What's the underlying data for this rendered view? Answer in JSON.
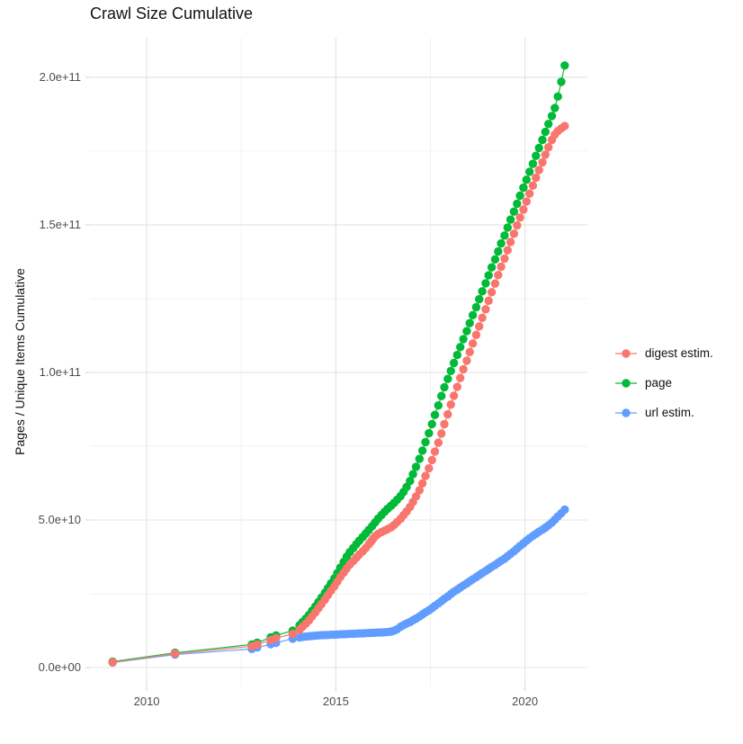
{
  "chart_data": {
    "type": "line-scatter",
    "title": "Crawl Size Cumulative",
    "xlabel": "",
    "ylabel": "Pages / Unique Items Cumulative",
    "value_unit": "1e9 (values below are billions of pages / items)",
    "grid": true,
    "legend_position": "right",
    "axes": {
      "x": {
        "lim": [
          2008.5,
          2021.65
        ],
        "major": [
          {
            "label": "2010",
            "year": 2010
          },
          {
            "label": "2015",
            "year": 2015
          },
          {
            "label": "2020",
            "year": 2020
          }
        ],
        "minor_years": [
          2012.5,
          2017.5
        ]
      },
      "y": {
        "lim_e9": [
          -6.4,
          213.4
        ],
        "major": [
          {
            "label": "0.0e+00",
            "value_e9": 0
          },
          {
            "label": "5.0e+10",
            "value_e9": 50
          },
          {
            "label": "1.0e+11",
            "value_e9": 100
          },
          {
            "label": "1.5e+11",
            "value_e9": 150
          },
          {
            "label": "2.0e+11",
            "value_e9": 200
          }
        ],
        "minor_e9": [
          25,
          75,
          125,
          175
        ]
      }
    },
    "style": {
      "grid_major_color": "#e4e4e4",
      "grid_minor_color": "#ededed",
      "tick_color": "#d6d6d6",
      "point_radius": 4.7,
      "line_width": 1.3
    },
    "series": [
      {
        "name": "digest estim.",
        "color": "#F8766D",
        "points": [
          [
            2009.1,
            1.8
          ],
          [
            2010.75,
            4.7
          ],
          [
            2012.78,
            7.2
          ],
          [
            2012.92,
            7.8
          ],
          [
            2013.28,
            9.3
          ],
          [
            2013.42,
            10
          ],
          [
            2013.86,
            11.4
          ],
          [
            2014.04,
            12.8
          ],
          [
            2014.12,
            13.8
          ],
          [
            2014.21,
            14.9
          ],
          [
            2014.29,
            16
          ],
          [
            2014.37,
            17.3
          ],
          [
            2014.46,
            18.7
          ],
          [
            2014.54,
            20.1
          ],
          [
            2014.62,
            21.5
          ],
          [
            2014.71,
            23
          ],
          [
            2014.79,
            24.5
          ],
          [
            2014.87,
            26
          ],
          [
            2014.96,
            27.5
          ],
          [
            2015.04,
            29.1
          ],
          [
            2015.12,
            30.7
          ],
          [
            2015.21,
            32.2
          ],
          [
            2015.29,
            33.6
          ],
          [
            2015.37,
            34.9
          ],
          [
            2015.46,
            36.1
          ],
          [
            2015.54,
            37.2
          ],
          [
            2015.62,
            38.3
          ],
          [
            2015.71,
            39.4
          ],
          [
            2015.79,
            40.5
          ],
          [
            2015.87,
            41.7
          ],
          [
            2015.92,
            42.5
          ],
          [
            2015.96,
            43.2
          ],
          [
            2016.0,
            43.9
          ],
          [
            2016.04,
            44.5
          ],
          [
            2016.12,
            45.3
          ],
          [
            2016.21,
            45.9
          ],
          [
            2016.29,
            46.4
          ],
          [
            2016.37,
            46.9
          ],
          [
            2016.46,
            47.5
          ],
          [
            2016.54,
            48.3
          ],
          [
            2016.62,
            49.3
          ],
          [
            2016.71,
            50.4
          ],
          [
            2016.79,
            51.6
          ],
          [
            2016.87,
            52.9
          ],
          [
            2016.96,
            54.4
          ],
          [
            2017.04,
            56.1
          ],
          [
            2017.12,
            58
          ],
          [
            2017.21,
            60.1
          ],
          [
            2017.29,
            62.4
          ],
          [
            2017.37,
            64.9
          ],
          [
            2017.46,
            67.5
          ],
          [
            2017.54,
            70.3
          ],
          [
            2017.62,
            73.2
          ],
          [
            2017.71,
            76.2
          ],
          [
            2017.79,
            79.3
          ],
          [
            2017.87,
            82.5
          ],
          [
            2017.96,
            85.8
          ],
          [
            2018.04,
            89.1
          ],
          [
            2018.12,
            92.1
          ],
          [
            2018.21,
            95.1
          ],
          [
            2018.29,
            98.1
          ],
          [
            2018.37,
            101.1
          ],
          [
            2018.46,
            104
          ],
          [
            2018.54,
            106.9
          ],
          [
            2018.62,
            109.8
          ],
          [
            2018.71,
            112.7
          ],
          [
            2018.79,
            115.6
          ],
          [
            2018.87,
            118.5
          ],
          [
            2018.96,
            121.4
          ],
          [
            2019.04,
            124.3
          ],
          [
            2019.12,
            127.2
          ],
          [
            2019.21,
            130.1
          ],
          [
            2019.29,
            133
          ],
          [
            2019.37,
            135.8
          ],
          [
            2019.46,
            138.6
          ],
          [
            2019.54,
            141.4
          ],
          [
            2019.62,
            144.2
          ],
          [
            2019.71,
            147
          ],
          [
            2019.79,
            149.8
          ],
          [
            2019.87,
            152.5
          ],
          [
            2019.96,
            155.2
          ],
          [
            2020.04,
            157.9
          ],
          [
            2020.12,
            160.6
          ],
          [
            2020.21,
            163.3
          ],
          [
            2020.29,
            166
          ],
          [
            2020.37,
            168.6
          ],
          [
            2020.46,
            171.2
          ],
          [
            2020.54,
            173.8
          ],
          [
            2020.62,
            176.3
          ],
          [
            2020.71,
            178.8
          ],
          [
            2020.79,
            180.6
          ],
          [
            2020.87,
            181.8
          ],
          [
            2020.96,
            182.7
          ],
          [
            2021.05,
            183.5
          ]
        ]
      },
      {
        "name": "page",
        "color": "#00BA38",
        "points": [
          [
            2009.1,
            2
          ],
          [
            2010.75,
            5
          ],
          [
            2012.78,
            7.8
          ],
          [
            2012.92,
            8.4
          ],
          [
            2013.28,
            10.2
          ],
          [
            2013.42,
            10.9
          ],
          [
            2013.86,
            12.5
          ],
          [
            2014.04,
            14.3
          ],
          [
            2014.12,
            15.4
          ],
          [
            2014.21,
            16.6
          ],
          [
            2014.29,
            17.8
          ],
          [
            2014.37,
            19.2
          ],
          [
            2014.46,
            20.7
          ],
          [
            2014.54,
            22.2
          ],
          [
            2014.62,
            23.7
          ],
          [
            2014.71,
            25.3
          ],
          [
            2014.79,
            26.9
          ],
          [
            2014.87,
            28.5
          ],
          [
            2014.96,
            30.2
          ],
          [
            2015.04,
            32
          ],
          [
            2015.12,
            33.9
          ],
          [
            2015.21,
            35.8
          ],
          [
            2015.29,
            37.6
          ],
          [
            2015.37,
            39.1
          ],
          [
            2015.46,
            40.5
          ],
          [
            2015.54,
            41.8
          ],
          [
            2015.62,
            43
          ],
          [
            2015.71,
            44.2
          ],
          [
            2015.79,
            45.4
          ],
          [
            2015.87,
            46.6
          ],
          [
            2015.96,
            47.9
          ],
          [
            2016.04,
            49.2
          ],
          [
            2016.12,
            50.5
          ],
          [
            2016.21,
            51.7
          ],
          [
            2016.29,
            52.8
          ],
          [
            2016.37,
            53.8
          ],
          [
            2016.46,
            54.8
          ],
          [
            2016.54,
            55.8
          ],
          [
            2016.62,
            56.9
          ],
          [
            2016.71,
            58.1
          ],
          [
            2016.79,
            59.5
          ],
          [
            2016.87,
            61.2
          ],
          [
            2016.96,
            63.2
          ],
          [
            2017.04,
            65.5
          ],
          [
            2017.12,
            68
          ],
          [
            2017.21,
            70.7
          ],
          [
            2017.29,
            73.5
          ],
          [
            2017.37,
            76.4
          ],
          [
            2017.46,
            79.4
          ],
          [
            2017.54,
            82.5
          ],
          [
            2017.62,
            85.6
          ],
          [
            2017.71,
            88.8
          ],
          [
            2017.79,
            92
          ],
          [
            2017.87,
            95
          ],
          [
            2017.96,
            97.8
          ],
          [
            2018.04,
            100.5
          ],
          [
            2018.12,
            103.2
          ],
          [
            2018.21,
            105.9
          ],
          [
            2018.29,
            108.6
          ],
          [
            2018.37,
            111.3
          ],
          [
            2018.46,
            114
          ],
          [
            2018.54,
            116.7
          ],
          [
            2018.62,
            119.4
          ],
          [
            2018.71,
            122.1
          ],
          [
            2018.79,
            124.8
          ],
          [
            2018.87,
            127.5
          ],
          [
            2018.96,
            130.2
          ],
          [
            2019.04,
            132.9
          ],
          [
            2019.12,
            135.6
          ],
          [
            2019.21,
            138.3
          ],
          [
            2019.29,
            141
          ],
          [
            2019.37,
            143.7
          ],
          [
            2019.46,
            146.4
          ],
          [
            2019.54,
            149.1
          ],
          [
            2019.62,
            151.8
          ],
          [
            2019.71,
            154.5
          ],
          [
            2019.79,
            157.2
          ],
          [
            2019.87,
            159.9
          ],
          [
            2019.96,
            162.6
          ],
          [
            2020.04,
            165.3
          ],
          [
            2020.12,
            168
          ],
          [
            2020.21,
            170.7
          ],
          [
            2020.29,
            173.4
          ],
          [
            2020.37,
            176.1
          ],
          [
            2020.46,
            178.8
          ],
          [
            2020.54,
            181.5
          ],
          [
            2020.62,
            184.2
          ],
          [
            2020.71,
            186.9
          ],
          [
            2020.79,
            189.6
          ],
          [
            2020.87,
            193.5
          ],
          [
            2020.96,
            198.5
          ],
          [
            2021.05,
            204
          ]
        ]
      },
      {
        "name": "url estim.",
        "color": "#619CFF",
        "points": [
          [
            2009.1,
            1.7
          ],
          [
            2010.75,
            4.4
          ],
          [
            2012.78,
            6.3
          ],
          [
            2012.92,
            6.8
          ],
          [
            2013.28,
            7.9
          ],
          [
            2013.42,
            8.4
          ],
          [
            2013.86,
            9.8
          ],
          [
            2014.04,
            10.2
          ],
          [
            2014.12,
            10.4
          ],
          [
            2014.21,
            10.5
          ],
          [
            2014.29,
            10.6
          ],
          [
            2014.37,
            10.7
          ],
          [
            2014.46,
            10.8
          ],
          [
            2014.54,
            10.9
          ],
          [
            2014.62,
            10.95
          ],
          [
            2014.71,
            11
          ],
          [
            2014.79,
            11.05
          ],
          [
            2014.87,
            11.1
          ],
          [
            2014.96,
            11.15
          ],
          [
            2015.04,
            11.2
          ],
          [
            2015.12,
            11.25
          ],
          [
            2015.21,
            11.3
          ],
          [
            2015.29,
            11.35
          ],
          [
            2015.37,
            11.4
          ],
          [
            2015.46,
            11.45
          ],
          [
            2015.54,
            11.5
          ],
          [
            2015.62,
            11.55
          ],
          [
            2015.71,
            11.6
          ],
          [
            2015.79,
            11.65
          ],
          [
            2015.87,
            11.7
          ],
          [
            2015.96,
            11.75
          ],
          [
            2016.04,
            11.8
          ],
          [
            2016.12,
            11.85
          ],
          [
            2016.21,
            11.9
          ],
          [
            2016.29,
            11.95
          ],
          [
            2016.37,
            12
          ],
          [
            2016.46,
            12.2
          ],
          [
            2016.54,
            12.5
          ],
          [
            2016.62,
            13
          ],
          [
            2016.71,
            13.8
          ],
          [
            2016.79,
            14.4
          ],
          [
            2016.87,
            14.9
          ],
          [
            2016.96,
            15.4
          ],
          [
            2017.04,
            16
          ],
          [
            2017.12,
            16.6
          ],
          [
            2017.21,
            17.3
          ],
          [
            2017.29,
            18
          ],
          [
            2017.37,
            18.7
          ],
          [
            2017.46,
            19.4
          ],
          [
            2017.54,
            20.1
          ],
          [
            2017.62,
            20.9
          ],
          [
            2017.71,
            21.7
          ],
          [
            2017.79,
            22.5
          ],
          [
            2017.87,
            23.3
          ],
          [
            2017.96,
            24.1
          ],
          [
            2018.04,
            24.9
          ],
          [
            2018.12,
            25.7
          ],
          [
            2018.21,
            26.4
          ],
          [
            2018.29,
            27.1
          ],
          [
            2018.37,
            27.8
          ],
          [
            2018.46,
            28.5
          ],
          [
            2018.54,
            29.2
          ],
          [
            2018.62,
            29.9
          ],
          [
            2018.71,
            30.6
          ],
          [
            2018.79,
            31.3
          ],
          [
            2018.87,
            32
          ],
          [
            2018.96,
            32.7
          ],
          [
            2019.04,
            33.4
          ],
          [
            2019.12,
            34.1
          ],
          [
            2019.21,
            34.8
          ],
          [
            2019.29,
            35.5
          ],
          [
            2019.37,
            36.2
          ],
          [
            2019.46,
            36.9
          ],
          [
            2019.54,
            37.7
          ],
          [
            2019.62,
            38.5
          ],
          [
            2019.71,
            39.4
          ],
          [
            2019.79,
            40.3
          ],
          [
            2019.87,
            41.2
          ],
          [
            2019.96,
            42.1
          ],
          [
            2020.04,
            43
          ],
          [
            2020.12,
            43.8
          ],
          [
            2020.21,
            44.6
          ],
          [
            2020.29,
            45.3
          ],
          [
            2020.37,
            46
          ],
          [
            2020.46,
            46.7
          ],
          [
            2020.54,
            47.4
          ],
          [
            2020.62,
            48.2
          ],
          [
            2020.71,
            49.1
          ],
          [
            2020.79,
            50.1
          ],
          [
            2020.87,
            51.2
          ],
          [
            2020.96,
            52.3
          ],
          [
            2021.05,
            53.5
          ]
        ]
      }
    ]
  }
}
